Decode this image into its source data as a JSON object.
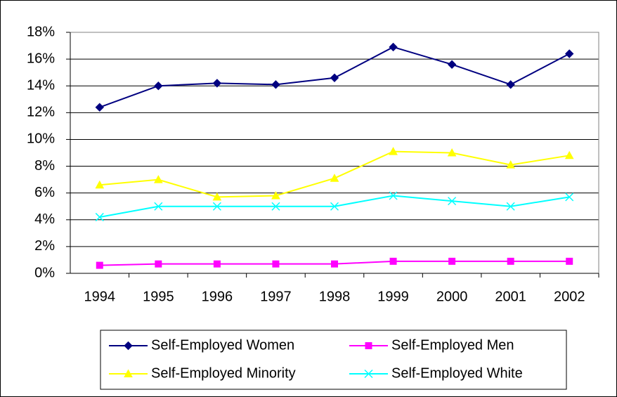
{
  "chart_data": {
    "type": "line",
    "categories": [
      "1994",
      "1995",
      "1996",
      "1997",
      "1998",
      "1999",
      "2000",
      "2001",
      "2002"
    ],
    "series": [
      {
        "name": "Self-Employed Women",
        "color": "#000080",
        "marker": "diamond",
        "values": [
          12.4,
          14.0,
          14.2,
          14.1,
          14.6,
          16.9,
          15.6,
          14.1,
          16.4
        ]
      },
      {
        "name": "Self-Employed Men",
        "color": "#ff00ff",
        "marker": "square",
        "values": [
          0.6,
          0.7,
          0.7,
          0.7,
          0.7,
          0.9,
          0.9,
          0.9,
          0.9
        ]
      },
      {
        "name": "Self-Employed Minority",
        "color": "#ffff00",
        "marker": "triangle",
        "values": [
          6.6,
          7.0,
          5.7,
          5.8,
          7.1,
          9.1,
          9.0,
          8.1,
          8.8
        ]
      },
      {
        "name": "Self-Employed White",
        "color": "#00ffff",
        "marker": "x",
        "values": [
          4.2,
          5.0,
          5.0,
          5.0,
          5.0,
          5.8,
          5.4,
          5.0,
          5.7
        ]
      }
    ],
    "ylim": [
      0,
      18
    ],
    "yticks": [
      {
        "value": 0,
        "label": "0%"
      },
      {
        "value": 2,
        "label": "2%"
      },
      {
        "value": 4,
        "label": "4%"
      },
      {
        "value": 6,
        "label": "6%"
      },
      {
        "value": 8,
        "label": "8%"
      },
      {
        "value": 10,
        "label": "10%"
      },
      {
        "value": 12,
        "label": "12%"
      },
      {
        "value": 14,
        "label": "14%"
      },
      {
        "value": 16,
        "label": "16%"
      },
      {
        "value": 18,
        "label": "18%"
      }
    ],
    "grid": true,
    "legend": "bottom"
  }
}
